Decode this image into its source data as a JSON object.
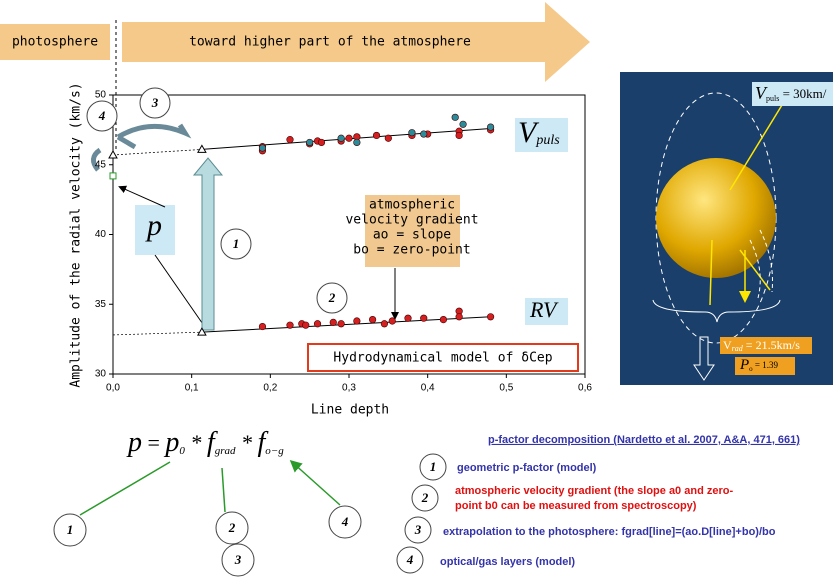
{
  "banner": {
    "left": "photosphere",
    "right": "toward higher part of the atmosphere"
  },
  "chart_data": {
    "type": "scatter",
    "xlabel": "Line depth",
    "ylabel": "Amplitude of the radial velocity (km/s)",
    "xlim": [
      0,
      0.6
    ],
    "ylim": [
      30,
      50
    ],
    "xticks": [
      {
        "value": 0,
        "label": "0,0"
      },
      {
        "value": 0.1,
        "label": "0,1"
      },
      {
        "value": 0.2,
        "label": "0,2"
      },
      {
        "value": 0.3,
        "label": "0,3"
      },
      {
        "value": 0.4,
        "label": "0,4"
      },
      {
        "value": 0.5,
        "label": "0,5"
      },
      {
        "value": 0.6,
        "label": "0,6"
      }
    ],
    "yticks": [
      30,
      35,
      40,
      45,
      50
    ],
    "series": [
      {
        "color": "#d42020",
        "x": [
          0.19,
          0.19,
          0.225,
          0.25,
          0.26,
          0.265,
          0.29,
          0.3,
          0.31,
          0.335,
          0.35,
          0.38,
          0.4,
          0.44,
          0.44,
          0.48,
          0.19,
          0.225,
          0.24,
          0.245,
          0.26,
          0.28,
          0.29,
          0.31,
          0.33,
          0.345,
          0.355,
          0.375,
          0.395,
          0.42,
          0.44,
          0.44,
          0.48
        ],
        "values": [
          46.3,
          46.0,
          46.8,
          46.5,
          46.7,
          46.6,
          46.7,
          46.9,
          47.0,
          47.1,
          46.9,
          47.1,
          47.2,
          47.4,
          47.1,
          47.5,
          33.4,
          33.5,
          33.6,
          33.5,
          33.6,
          33.7,
          33.6,
          33.8,
          33.9,
          33.6,
          33.8,
          34.0,
          34.0,
          33.9,
          34.5,
          34.1,
          34.1
        ]
      },
      {
        "color": "#2a8c9a",
        "x": [
          0.19,
          0.25,
          0.29,
          0.31,
          0.38,
          0.395,
          0.435,
          0.445,
          0.48
        ],
        "values": [
          46.2,
          46.6,
          46.9,
          46.6,
          47.3,
          47.2,
          48.4,
          47.9,
          47.7
        ]
      }
    ],
    "fits": [
      {
        "x": [
          0.113,
          0.48
        ],
        "y": [
          46.1,
          47.6
        ]
      },
      {
        "x": [
          0.113,
          0.48
        ],
        "y": [
          33.0,
          34.1
        ]
      }
    ],
    "extrapolations": [
      {
        "x": [
          0,
          0.113
        ],
        "y": [
          45.7,
          46.1
        ]
      },
      {
        "x": [
          0,
          0.113
        ],
        "y": [
          32.8,
          33.0
        ]
      }
    ],
    "photosphere_point": {
      "x": 0,
      "y": 44.2
    },
    "vpuls_label": {
      "main": "V",
      "sub": "puls"
    },
    "rv_label": "RV",
    "p_label": "p",
    "gradient_box": [
      "atmospheric",
      "velocity gradient",
      "ao = slope",
      "bo = zero-point"
    ],
    "model_label": "Hydrodynamical model of δCep"
  },
  "numbers": [
    "1",
    "2",
    "3",
    "4"
  ],
  "star_panel": {
    "vpuls": {
      "main": "V",
      "sub": "puls",
      "rest": " = 30km/"
    },
    "vrad": {
      "main": "V",
      "sub": "rad",
      "rest": " = 21.5km/s"
    },
    "p0": {
      "main": "P",
      "sub": "o",
      "rest": " = 1.39"
    }
  },
  "formula": [
    "p",
    " = ",
    "p",
    "0",
    " * ",
    "f",
    "grad",
    " * ",
    "f",
    "o−g"
  ],
  "decomposition": {
    "title": "p-factor decomposition (Nardetto et al. 2007, A&A, 471, 661)",
    "items": [
      [
        "geometric p-factor (model)"
      ],
      [
        "atmospheric velocity gradient (the slope a0 and zero-",
        "point b0 can be measured from spectroscopy)"
      ],
      [
        "extrapolation to the photosphere: fgrad[line]=(ao.D[line]+bo)/bo"
      ],
      [
        "optical/gas layers (model)"
      ]
    ]
  }
}
